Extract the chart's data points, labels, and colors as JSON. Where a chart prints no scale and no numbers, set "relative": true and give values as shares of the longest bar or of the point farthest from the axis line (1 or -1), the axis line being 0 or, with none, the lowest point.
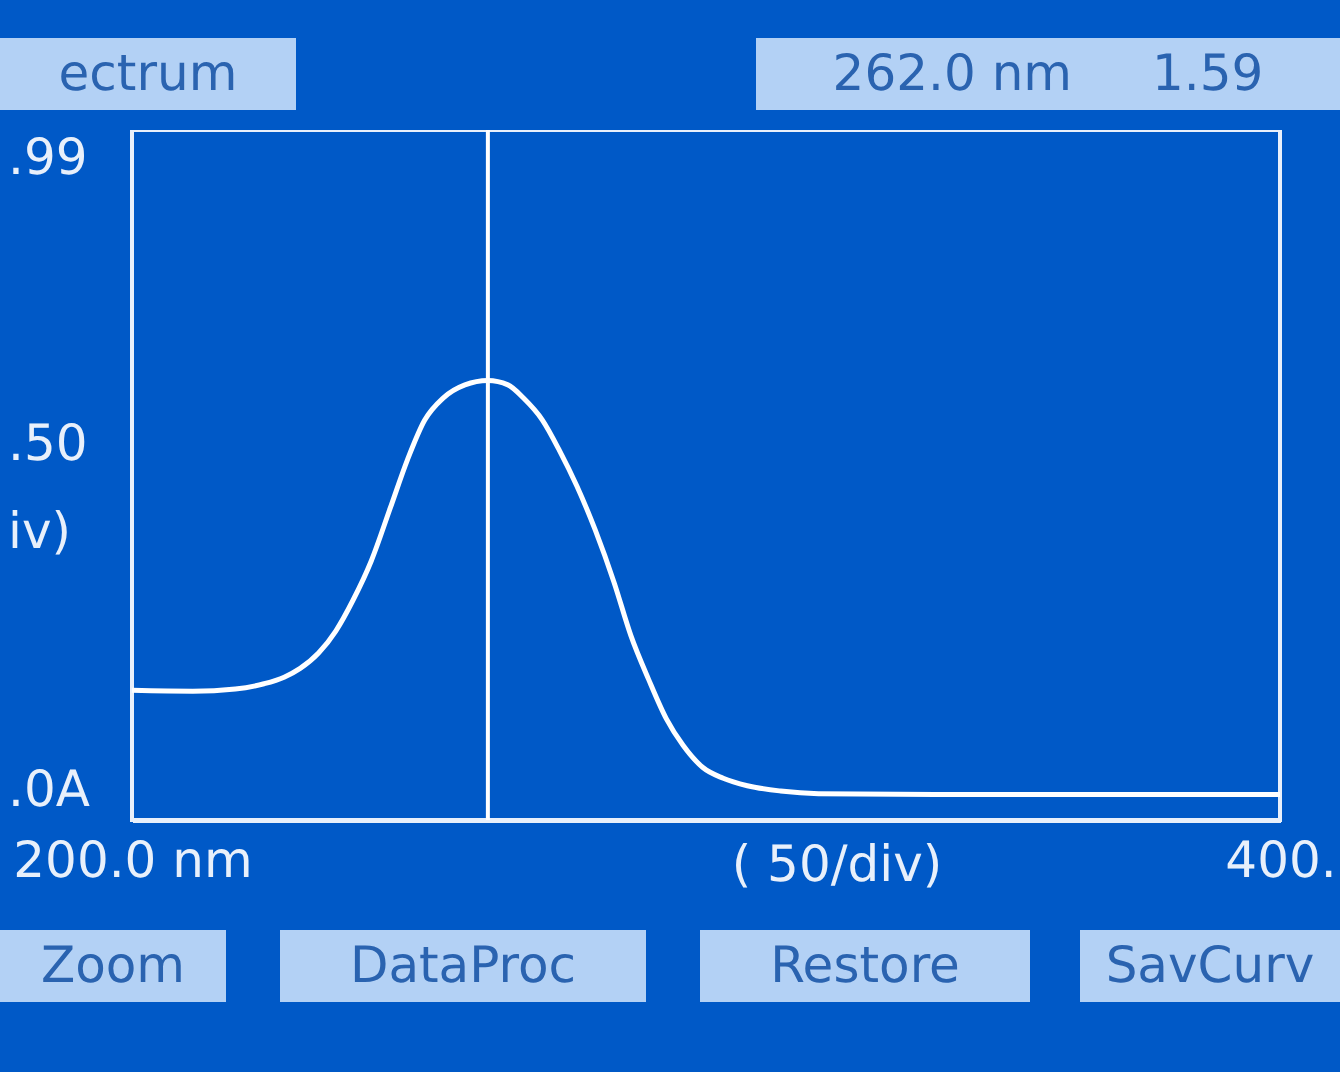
{
  "chart_data": {
    "type": "line",
    "relative": true,
    "xlabel": "( 50/div)",
    "x": [
      200,
      210.6,
      218,
      223,
      226.5,
      229.3,
      232.5,
      235.5,
      238.5,
      241.7,
      245,
      248,
      251,
      254.2,
      258,
      262,
      265.5,
      268.2,
      271.5,
      274.5,
      277.5,
      280.7,
      284,
      286.9,
      290,
      293.1,
      296,
      299.4,
      303,
      307.2,
      313,
      319.6,
      340,
      370,
      400
    ],
    "values": [
      0.295,
      0.293,
      0.298,
      0.31,
      0.325,
      0.345,
      0.38,
      0.43,
      0.5,
      0.59,
      0.71,
      0.82,
      0.91,
      0.96,
      0.99,
      1,
      0.99,
      0.96,
      0.91,
      0.84,
      0.76,
      0.66,
      0.54,
      0.42,
      0.32,
      0.23,
      0.17,
      0.12,
      0.095,
      0.078,
      0.066,
      0.06,
      0.058,
      0.058,
      0.058
    ],
    "color": "#ffffff",
    "xlim": [
      200,
      400
    ],
    "xticks": [
      {
        "value": 200,
        "label": "200.0 nm"
      },
      {
        "value": 400,
        "label": "400."
      }
    ],
    "ref_lines": [
      {
        "axis": "x",
        "value": 262
      }
    ],
    "annotations": [
      "ectrum",
      "262.0 nm",
      "1.59",
      ".99",
      ".50",
      "iv)",
      ".0A",
      "Zoom",
      "DataProc",
      "Restore",
      "SavCurv"
    ],
    "grid": false,
    "marker": "none",
    "line_style": "solid"
  }
}
